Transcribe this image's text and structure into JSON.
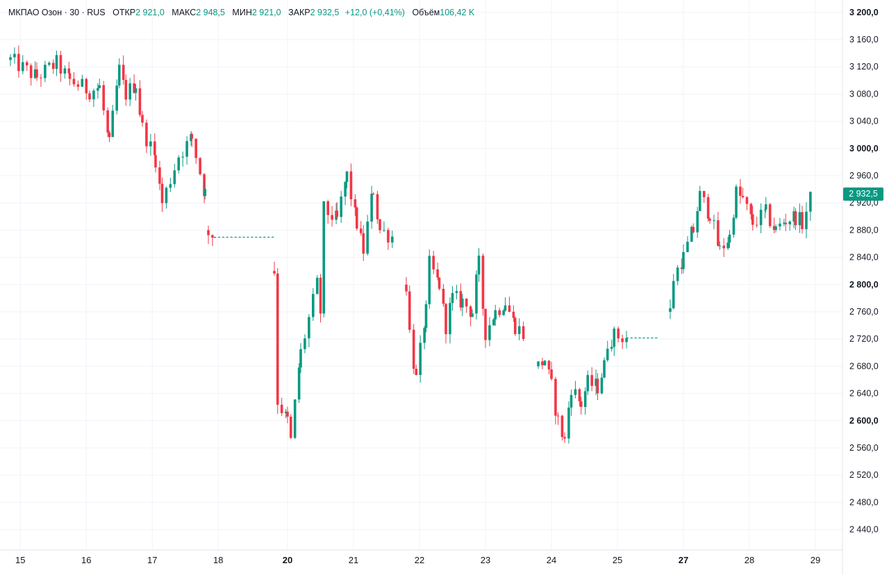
{
  "legend": {
    "symbol": "МКПАО Озон · 30 · RUS",
    "open_label": "ОТКР",
    "open_value": "2 921,0",
    "high_label": "МАКС",
    "high_value": "2 948,5",
    "low_label": "МИН",
    "low_value": "2 921,0",
    "close_label": "ЗАКР",
    "close_value": "2 932,5",
    "change": "+12,0 (+0,41%)",
    "volume_label": "Объём",
    "volume_value": "106,42 K"
  },
  "last_price_label": "2 932,5",
  "colors": {
    "up": "#089981",
    "down": "#f23645",
    "grid": "#f0f3fa",
    "axis_border": "#e0e3eb",
    "badge": "#089981"
  },
  "chart_data": {
    "type": "candlestick",
    "interval": "30 min",
    "y_axis": {
      "position": "right",
      "range": [
        2410,
        3210
      ],
      "ticks": [
        2440,
        2480,
        2520,
        2560,
        2600,
        2640,
        2680,
        2720,
        2760,
        2800,
        2840,
        2880,
        2920,
        2960,
        3000,
        3040,
        3080,
        3120,
        3160,
        3200
      ],
      "tick_labels": [
        "2 440,0",
        "2 480,0",
        "2 520,0",
        "2 560,0",
        "2 600,0",
        "2 640,0",
        "2 680,0",
        "2 720,0",
        "2 760,0",
        "2 800,0",
        "2 840,0",
        "2 880,0",
        "2 920,0",
        "2 960,0",
        "3 000,0",
        "3 040,0",
        "3 080,0",
        "3 120,0",
        "3 160,0",
        "3 200,0"
      ],
      "bold_ticks": [
        2600,
        2800,
        3000,
        3200
      ]
    },
    "x_axis": {
      "labels": [
        "15",
        "16",
        "17",
        "18",
        "20",
        "21",
        "22",
        "23",
        "24",
        "25",
        "27",
        "28",
        "29"
      ],
      "bold_labels": [
        "20",
        "27"
      ],
      "day_positions": [
        0.15,
        1.15,
        2.15,
        3.15,
        4.2,
        5.2,
        6.2,
        7.2,
        8.2,
        9.2,
        10.2,
        11.2,
        12.2
      ]
    },
    "grid": true,
    "series": [
      {
        "ohlc_path": [
          [
            0.0,
            3130
          ],
          [
            0.4,
            3105
          ],
          [
            0.7,
            3125
          ],
          [
            0.9,
            3100
          ],
          [
            1.2,
            3085
          ],
          [
            1.35,
            3090
          ],
          [
            1.5,
            3005
          ],
          [
            1.55,
            3045
          ],
          [
            1.65,
            3115
          ],
          [
            1.75,
            3080
          ],
          [
            1.9,
            3095
          ],
          [
            2.0,
            3030
          ],
          [
            2.2,
            2985
          ],
          [
            2.3,
            2920
          ],
          [
            2.55,
            2990
          ],
          [
            2.75,
            3015
          ],
          [
            2.95,
            2935
          ],
          [
            3.0,
            2955
          ]
        ]
      },
      {
        "ohlc_path": [
          [
            3.0,
            2880
          ],
          [
            3.1,
            2870
          ],
          [
            3.98,
            2870
          ]
        ]
      },
      {
        "ohlc_path": [
          [
            4.0,
            2820
          ],
          [
            4.05,
            2630
          ],
          [
            4.2,
            2600
          ],
          [
            4.25,
            2570
          ],
          [
            4.4,
            2700
          ],
          [
            4.65,
            2800
          ],
          [
            4.7,
            2760
          ],
          [
            4.75,
            2910
          ],
          [
            4.95,
            2895
          ],
          [
            5.1,
            2960
          ],
          [
            5.25,
            2890
          ],
          [
            5.35,
            2850
          ],
          [
            5.5,
            2940
          ],
          [
            5.6,
            2880
          ],
          [
            5.8,
            2870
          ]
        ]
      },
      {
        "ohlc_path": [
          [
            6.0,
            2800
          ],
          [
            6.05,
            2730
          ],
          [
            6.15,
            2660
          ],
          [
            6.3,
            2760
          ],
          [
            6.35,
            2830
          ],
          [
            6.5,
            2800
          ],
          [
            6.6,
            2740
          ],
          [
            6.7,
            2780
          ],
          [
            6.85,
            2775
          ],
          [
            7.0,
            2760
          ],
          [
            7.1,
            2830
          ],
          [
            7.2,
            2730
          ],
          [
            7.35,
            2760
          ],
          [
            7.5,
            2775
          ],
          [
            7.65,
            2740
          ],
          [
            7.8,
            2725
          ]
        ]
      },
      {
        "ohlc_path": [
          [
            8.0,
            2680
          ],
          [
            8.1,
            2690
          ],
          [
            8.2,
            2650
          ],
          [
            8.3,
            2600
          ],
          [
            8.4,
            2570
          ],
          [
            8.5,
            2650
          ],
          [
            8.65,
            2625
          ],
          [
            8.75,
            2655
          ],
          [
            8.9,
            2650
          ],
          [
            9.0,
            2680
          ],
          [
            9.05,
            2715
          ],
          [
            9.15,
            2725
          ],
          [
            9.35,
            2722
          ],
          [
            9.8,
            2722
          ]
        ]
      },
      {
        "ohlc_path": [
          [
            10.0,
            2760
          ],
          [
            10.05,
            2810
          ],
          [
            10.2,
            2840
          ],
          [
            10.35,
            2880
          ],
          [
            10.45,
            2930
          ],
          [
            10.6,
            2905
          ],
          [
            10.75,
            2850
          ],
          [
            10.9,
            2870
          ],
          [
            11.0,
            2935
          ],
          [
            11.1,
            2925
          ],
          [
            11.25,
            2890
          ],
          [
            11.45,
            2905
          ],
          [
            11.6,
            2880
          ],
          [
            11.75,
            2895
          ],
          [
            11.9,
            2900
          ],
          [
            12.0,
            2890
          ],
          [
            12.15,
            2932.5
          ]
        ]
      }
    ]
  }
}
